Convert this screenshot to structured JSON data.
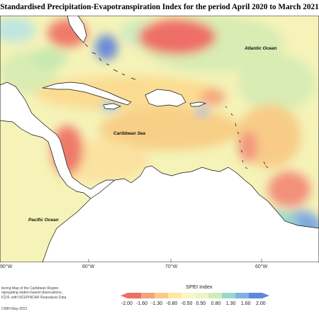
{
  "title": "Standardised Precipitation-Evapotranspiration Index for the period April 2020 to March 2021",
  "map_labels": {
    "atlantic": "Atlantic Ocean",
    "caribbean": "Caribbean Sea",
    "pacific": "Pacific Ocean"
  },
  "axis": {
    "lon_labels": [
      "90°W",
      "80°W",
      "70°W",
      "60°W"
    ]
  },
  "notes": [
    "itoring Map of the Caribbean Region.",
    "ngregating station based observations,",
    "ICDF, with NCEP/NCAR Reanalysis Data"
  ],
  "credit": "CIMH May-2021",
  "legend": {
    "title": "SPEI Index",
    "ticks": [
      "-2.00",
      "-1.60",
      "-1.30",
      "-0.80",
      "-0.50",
      "0.50",
      "0.80",
      "1.30",
      "1.60",
      "2.00"
    ],
    "colors": [
      "#ee6e68",
      "#f4a37a",
      "#f8cc88",
      "#fbe9a0",
      "#fbf6c2",
      "#eef4c8",
      "#cfecb6",
      "#9ad8c9",
      "#7fb3e3",
      "#5e88dc"
    ]
  }
}
